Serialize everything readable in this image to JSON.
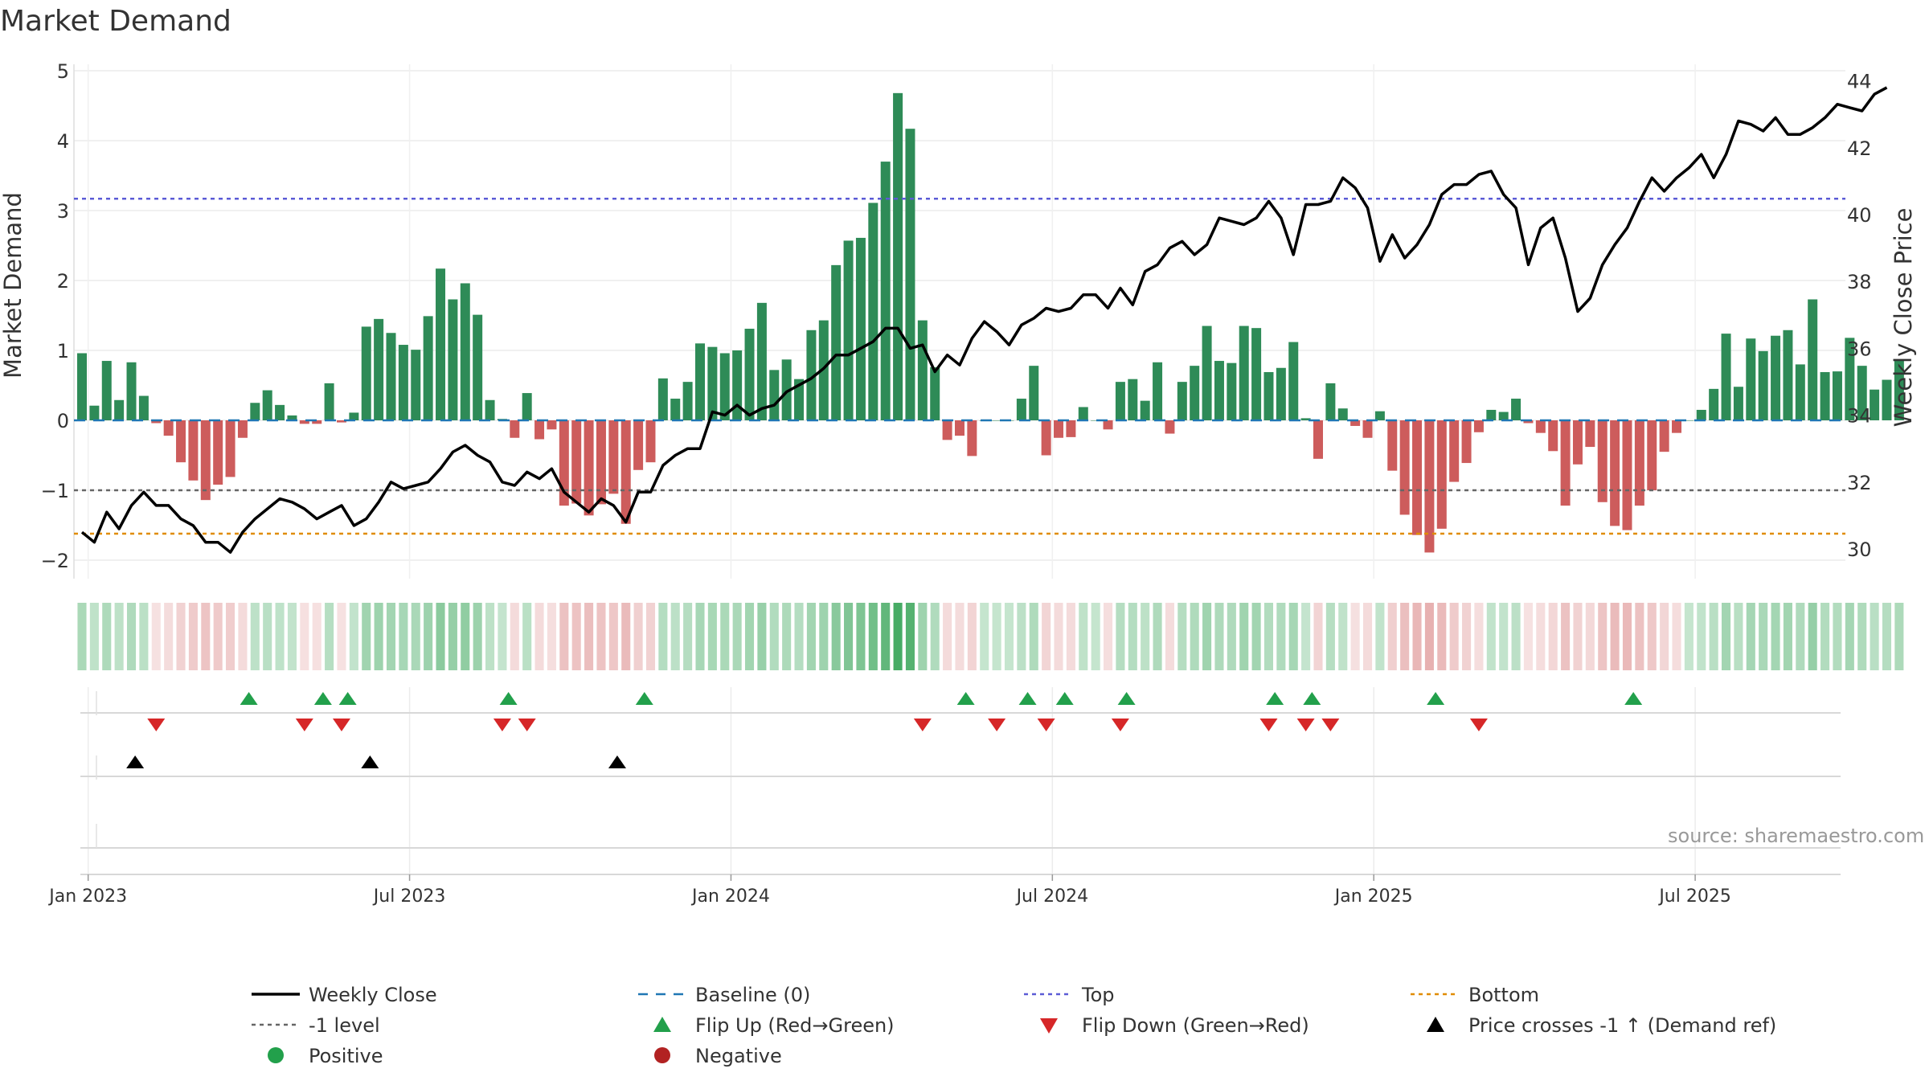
{
  "chart_data": {
    "type": "bar",
    "title": "Market Demand",
    "ylabel": "Market Demand",
    "y2label": "Weekly Close Price",
    "ylim": [
      -2.2,
      5
    ],
    "y2lim": [
      29,
      44.4
    ],
    "yticks": [
      -2,
      -1,
      0,
      1,
      2,
      3,
      4,
      5
    ],
    "y2ticks": [
      30,
      32,
      34,
      36,
      38,
      40,
      42,
      44
    ],
    "x_tick_labels": [
      "Jan 2023",
      "Jul 2023",
      "Jan 2024",
      "Jul 2024",
      "Jan 2025",
      "Jul 2025"
    ],
    "x_tick_weeks": [
      0.5,
      26.5,
      52.5,
      78.5,
      104.5,
      130.5
    ],
    "top_level": 3.17,
    "bottom_level": -1.62,
    "minus_one_level": -1,
    "source": "source: sharemaestro.com",
    "colors": {
      "positive": "#2e8b57",
      "negative": "#cd5c5c",
      "price": "#000000",
      "baseline": "#1f77b4",
      "top": "#5b5bd6",
      "bottom": "#e08c00",
      "minus_one": "#666666",
      "flip_up": "#22a04b",
      "flip_down": "#d62728",
      "cross": "#000000"
    },
    "demand": [
      0.96,
      0.21,
      0.85,
      0.29,
      0.83,
      0.35,
      -0.04,
      -0.22,
      -0.6,
      -0.86,
      -1.14,
      -0.92,
      -0.81,
      -0.25,
      0.25,
      0.43,
      0.22,
      0.07,
      -0.05,
      -0.05,
      0.53,
      -0.03,
      0.11,
      1.34,
      1.45,
      1.25,
      1.08,
      1.01,
      1.49,
      2.17,
      1.73,
      1.96,
      1.51,
      0.29,
      0.02,
      -0.25,
      0.39,
      -0.27,
      -0.13,
      -1.22,
      -1.19,
      -1.36,
      -1.2,
      -1.05,
      -1.48,
      -0.71,
      -0.6,
      0.6,
      0.31,
      0.55,
      1.1,
      1.05,
      0.96,
      1.0,
      1.31,
      1.68,
      0.72,
      0.87,
      0.59,
      1.29,
      1.43,
      2.22,
      2.57,
      2.61,
      3.11,
      3.7,
      4.68,
      4.17,
      1.43,
      0.76,
      -0.28,
      -0.22,
      -0.51,
      0.0,
      0.0,
      0.0,
      0.31,
      0.78,
      -0.5,
      -0.25,
      -0.24,
      0.19,
      0.0,
      -0.13,
      0.55,
      0.59,
      0.28,
      0.83,
      -0.19,
      0.55,
      0.78,
      1.35,
      0.85,
      0.82,
      1.35,
      1.32,
      0.69,
      0.75,
      1.12,
      0.03,
      -0.55,
      0.53,
      0.17,
      -0.08,
      -0.25,
      0.13,
      -0.72,
      -1.35,
      -1.64,
      -1.89,
      -1.55,
      -0.88,
      -0.61,
      -0.17,
      0.15,
      0.12,
      0.31,
      -0.04,
      -0.18,
      -0.44,
      -1.22,
      -0.63,
      -0.38,
      -1.17,
      -1.51,
      -1.57,
      -1.22,
      -1.0,
      -0.45,
      -0.18,
      0.0,
      0.15,
      0.45,
      1.24,
      0.48,
      1.17,
      0.99,
      1.21,
      1.29,
      0.8,
      1.73,
      0.69,
      0.7,
      1.18,
      0.78,
      0.44,
      0.58,
      0.87
    ],
    "weekly_close": [
      30.5,
      30.2,
      31.1,
      30.6,
      31.3,
      31.7,
      31.3,
      31.3,
      30.9,
      30.7,
      30.2,
      30.2,
      29.9,
      30.5,
      30.9,
      31.2,
      31.5,
      31.4,
      31.2,
      30.9,
      31.1,
      31.3,
      30.7,
      30.9,
      31.4,
      32.0,
      31.8,
      31.9,
      32.0,
      32.4,
      32.9,
      33.1,
      32.8,
      32.6,
      32.0,
      31.9,
      32.3,
      32.1,
      32.4,
      31.7,
      31.4,
      31.1,
      31.5,
      31.3,
      30.8,
      31.7,
      31.7,
      32.5,
      32.8,
      33.0,
      33.0,
      34.1,
      34.0,
      34.3,
      34.0,
      34.2,
      34.3,
      34.7,
      34.9,
      35.1,
      35.4,
      35.8,
      35.8,
      36.0,
      36.2,
      36.6,
      36.6,
      36.0,
      36.1,
      35.3,
      35.8,
      35.5,
      36.3,
      36.8,
      36.5,
      36.1,
      36.7,
      36.9,
      37.2,
      37.1,
      37.2,
      37.6,
      37.6,
      37.2,
      37.8,
      37.3,
      38.3,
      38.5,
      39.0,
      39.2,
      38.8,
      39.1,
      39.9,
      39.8,
      39.7,
      39.9,
      40.4,
      39.9,
      38.8,
      40.3,
      40.3,
      40.4,
      41.1,
      40.8,
      40.2,
      38.6,
      39.4,
      38.7,
      39.1,
      39.7,
      40.6,
      40.9,
      40.9,
      41.2,
      41.3,
      40.6,
      40.2,
      38.5,
      39.6,
      39.9,
      38.7,
      37.1,
      37.5,
      38.5,
      39.1,
      39.6,
      40.4,
      41.1,
      40.7,
      41.1,
      41.4,
      41.8,
      41.1,
      41.8,
      42.8,
      42.7,
      42.5,
      42.9,
      42.4,
      42.4,
      42.6,
      42.9,
      43.3,
      43.2,
      43.1,
      43.6,
      43.8
    ],
    "flip_up_weeks": [
      13.5,
      19.5,
      21.5,
      34.5,
      45.5,
      71.5,
      76.5,
      79.5,
      84.5,
      96.5,
      99.5,
      109.5,
      125.5
    ],
    "flip_down_weeks": [
      6,
      18,
      21,
      34,
      36,
      68,
      74,
      78,
      84,
      96,
      99,
      101,
      113
    ],
    "cross_weeks": [
      4.3,
      23.3,
      43.3
    ],
    "legend": {
      "weekly_close": "Weekly Close",
      "baseline": "Baseline (0)",
      "top": "Top",
      "bottom": "Bottom",
      "minus_one": "-1 level",
      "flip_up": "Flip Up (Red→Green)",
      "flip_down": "Flip Down (Green→Red)",
      "cross": "Price crosses -1 ↑ (Demand ref)",
      "positive": "Positive",
      "negative": "Negative"
    }
  }
}
